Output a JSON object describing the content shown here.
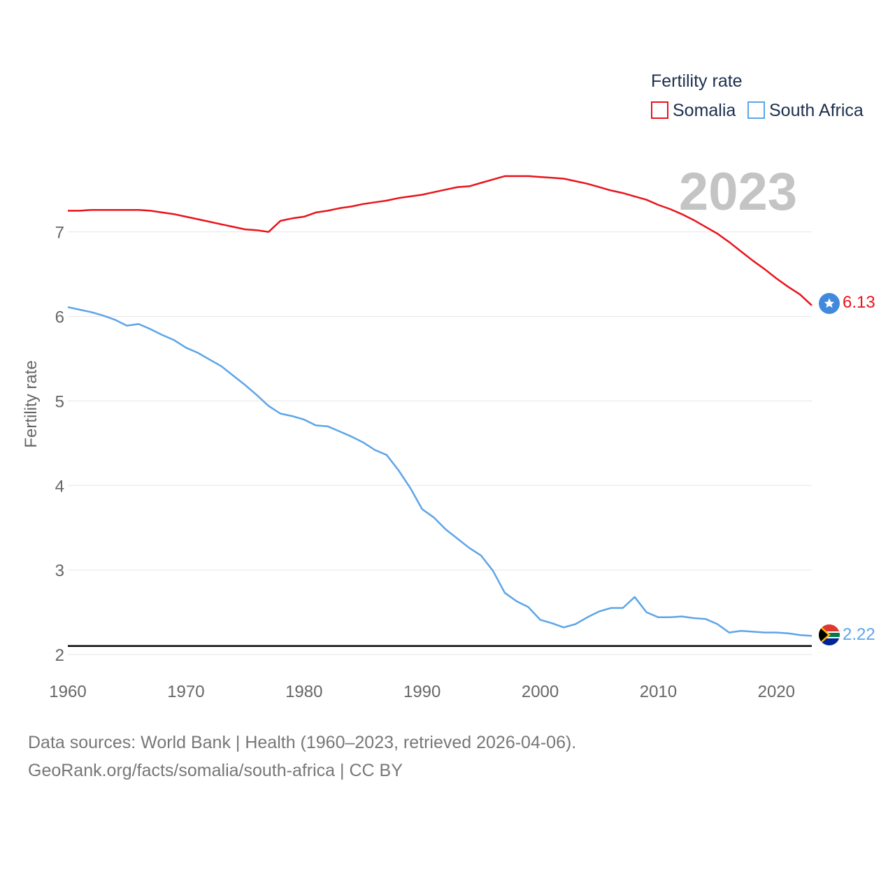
{
  "chart_data": {
    "type": "line",
    "ylabel": "Fertility rate",
    "xlabel": "",
    "xlim": [
      1960,
      2023
    ],
    "ylim": [
      2,
      7.75
    ],
    "xticks": [
      1960,
      1970,
      1980,
      1990,
      2000,
      2010,
      2020
    ],
    "yticks": [
      2,
      3,
      4,
      5,
      6,
      7
    ],
    "grid": true,
    "year_label": "2023",
    "reference_line": 2.1,
    "legend": {
      "title": "Fertility rate",
      "position": "top-right"
    },
    "x": [
      1960,
      1961,
      1962,
      1963,
      1964,
      1965,
      1966,
      1967,
      1968,
      1969,
      1970,
      1971,
      1972,
      1973,
      1974,
      1975,
      1976,
      1977,
      1978,
      1979,
      1980,
      1981,
      1982,
      1983,
      1984,
      1985,
      1986,
      1987,
      1988,
      1989,
      1990,
      1991,
      1992,
      1993,
      1994,
      1995,
      1996,
      1997,
      1998,
      1999,
      2000,
      2001,
      2002,
      2003,
      2004,
      2005,
      2006,
      2007,
      2008,
      2009,
      2010,
      2011,
      2012,
      2013,
      2014,
      2015,
      2016,
      2017,
      2018,
      2019,
      2020,
      2021,
      2022,
      2023
    ],
    "series": [
      {
        "name": "Somalia",
        "color": "#e8141c",
        "end_label": "6.13",
        "values": [
          7.25,
          7.25,
          7.26,
          7.26,
          7.26,
          7.26,
          7.26,
          7.25,
          7.23,
          7.21,
          7.18,
          7.15,
          7.12,
          7.09,
          7.06,
          7.03,
          7.02,
          7.0,
          7.13,
          7.16,
          7.18,
          7.23,
          7.25,
          7.28,
          7.3,
          7.33,
          7.35,
          7.37,
          7.4,
          7.42,
          7.44,
          7.47,
          7.5,
          7.53,
          7.54,
          7.58,
          7.62,
          7.66,
          7.66,
          7.66,
          7.65,
          7.64,
          7.63,
          7.6,
          7.57,
          7.53,
          7.49,
          7.46,
          7.42,
          7.38,
          7.32,
          7.27,
          7.21,
          7.14,
          7.06,
          6.98,
          6.88,
          6.77,
          6.66,
          6.56,
          6.45,
          6.35,
          6.26,
          6.13
        ]
      },
      {
        "name": "South Africa",
        "color": "#5da5e8",
        "end_label": "2.22",
        "values": [
          6.11,
          6.08,
          6.05,
          6.01,
          5.96,
          5.89,
          5.91,
          5.85,
          5.78,
          5.72,
          5.63,
          5.57,
          5.49,
          5.41,
          5.3,
          5.19,
          5.07,
          4.94,
          4.85,
          4.82,
          4.78,
          4.71,
          4.7,
          4.64,
          4.58,
          4.51,
          4.42,
          4.36,
          4.18,
          3.97,
          3.72,
          3.62,
          3.48,
          3.37,
          3.26,
          3.17,
          2.99,
          2.73,
          2.63,
          2.56,
          2.41,
          2.37,
          2.32,
          2.36,
          2.44,
          2.51,
          2.55,
          2.55,
          2.68,
          2.5,
          2.44,
          2.44,
          2.45,
          2.43,
          2.42,
          2.36,
          2.26,
          2.28,
          2.27,
          2.26,
          2.26,
          2.25,
          2.23,
          2.22
        ]
      }
    ]
  },
  "footer": {
    "line1": "Data sources: World Bank | Health (1960–2023, retrieved 2026-04-06).",
    "line2": "GeoRank.org/facts/somalia/south-africa | CC BY"
  }
}
